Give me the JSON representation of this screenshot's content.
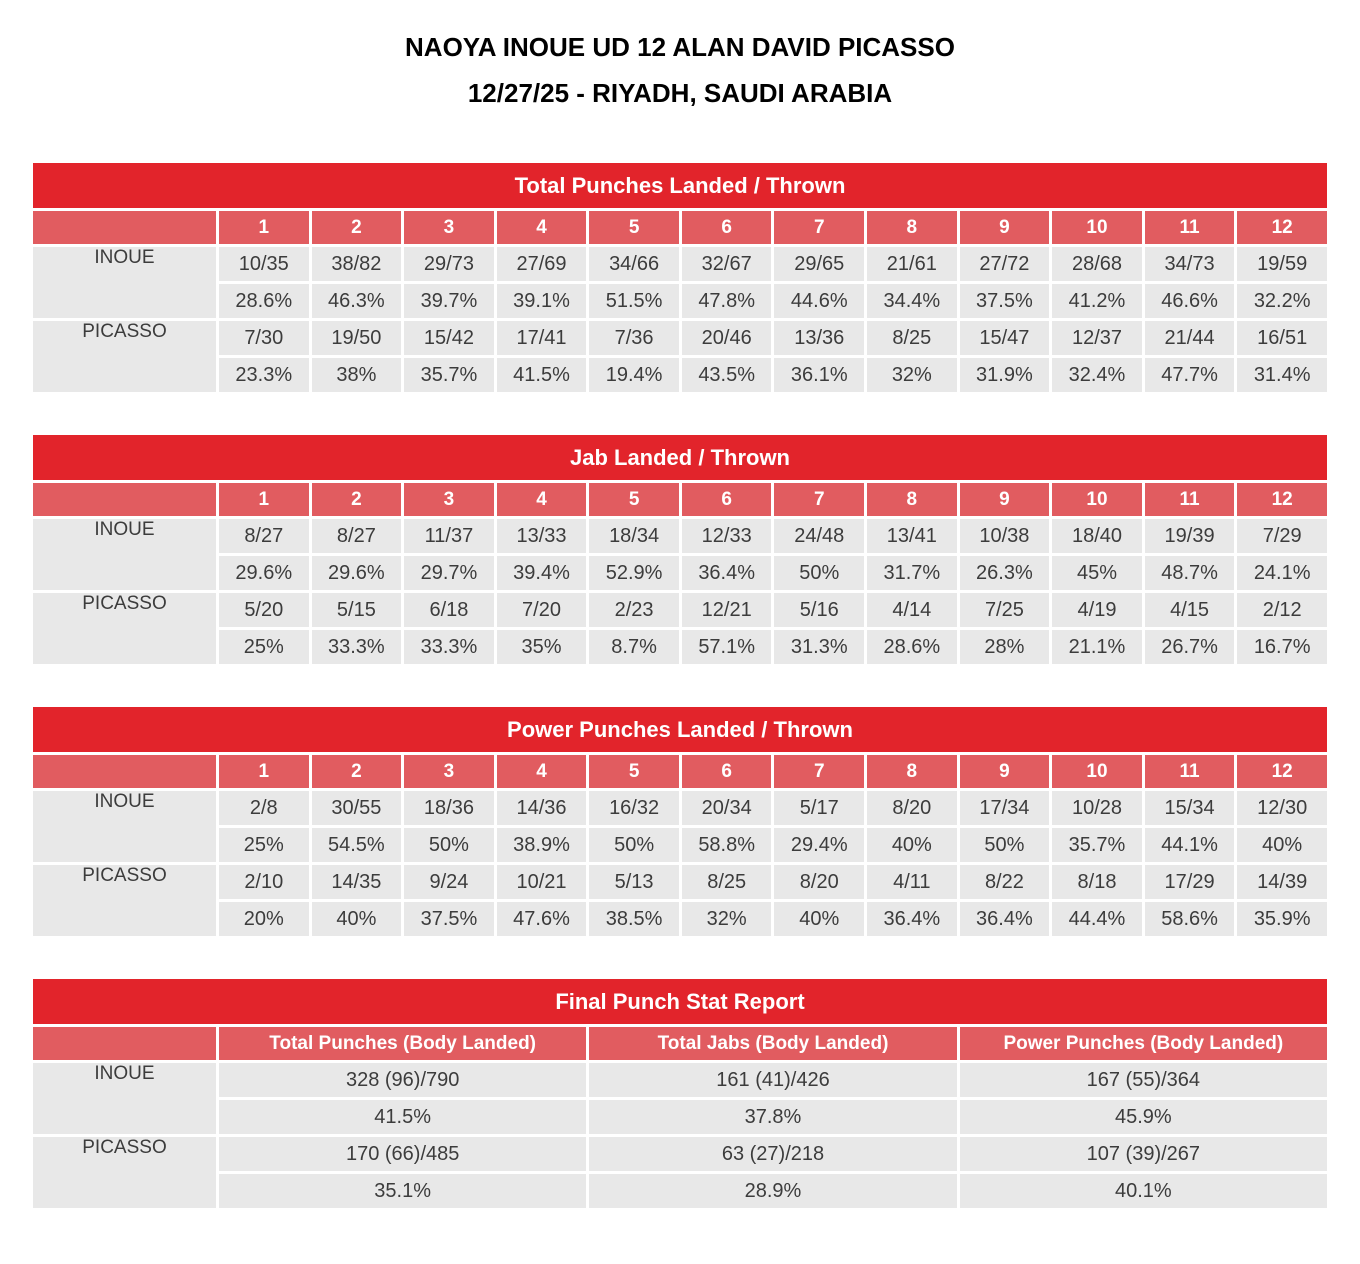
{
  "page": {
    "title_line1": "NAOYA INOUE UD 12 ALAN DAVID PICASSO",
    "title_line2": "12/27/25 - RIYADH, SAUDI ARABIA"
  },
  "colors": {
    "header_red": "#E2242B",
    "subheader_red": "#E15C60",
    "cell_gray": "#E8E8E8",
    "text_dark": "#3C3C3C"
  },
  "rounds": [
    "1",
    "2",
    "3",
    "4",
    "5",
    "6",
    "7",
    "8",
    "9",
    "10",
    "11",
    "12"
  ],
  "tables": [
    {
      "id": "total-punches",
      "title": "Total Punches Landed / Thrown",
      "fighters": [
        {
          "name": "INOUE",
          "landed": [
            "10/35",
            "38/82",
            "29/73",
            "27/69",
            "34/66",
            "32/67",
            "29/65",
            "21/61",
            "27/72",
            "28/68",
            "34/73",
            "19/59"
          ],
          "pct": [
            "28.6%",
            "46.3%",
            "39.7%",
            "39.1%",
            "51.5%",
            "47.8%",
            "44.6%",
            "34.4%",
            "37.5%",
            "41.2%",
            "46.6%",
            "32.2%"
          ]
        },
        {
          "name": "PICASSO",
          "landed": [
            "7/30",
            "19/50",
            "15/42",
            "17/41",
            "7/36",
            "20/46",
            "13/36",
            "8/25",
            "15/47",
            "12/37",
            "21/44",
            "16/51"
          ],
          "pct": [
            "23.3%",
            "38%",
            "35.7%",
            "41.5%",
            "19.4%",
            "43.5%",
            "36.1%",
            "32%",
            "31.9%",
            "32.4%",
            "47.7%",
            "31.4%"
          ]
        }
      ]
    },
    {
      "id": "jabs",
      "title": "Jab Landed / Thrown",
      "fighters": [
        {
          "name": "INOUE",
          "landed": [
            "8/27",
            "8/27",
            "11/37",
            "13/33",
            "18/34",
            "12/33",
            "24/48",
            "13/41",
            "10/38",
            "18/40",
            "19/39",
            "7/29"
          ],
          "pct": [
            "29.6%",
            "29.6%",
            "29.7%",
            "39.4%",
            "52.9%",
            "36.4%",
            "50%",
            "31.7%",
            "26.3%",
            "45%",
            "48.7%",
            "24.1%"
          ]
        },
        {
          "name": "PICASSO",
          "landed": [
            "5/20",
            "5/15",
            "6/18",
            "7/20",
            "2/23",
            "12/21",
            "5/16",
            "4/14",
            "7/25",
            "4/19",
            "4/15",
            "2/12"
          ],
          "pct": [
            "25%",
            "33.3%",
            "33.3%",
            "35%",
            "8.7%",
            "57.1%",
            "31.3%",
            "28.6%",
            "28%",
            "21.1%",
            "26.7%",
            "16.7%"
          ]
        }
      ]
    },
    {
      "id": "power-punches",
      "title": "Power Punches Landed / Thrown",
      "fighters": [
        {
          "name": "INOUE",
          "landed": [
            "2/8",
            "30/55",
            "18/36",
            "14/36",
            "16/32",
            "20/34",
            "5/17",
            "8/20",
            "17/34",
            "10/28",
            "15/34",
            "12/30"
          ],
          "pct": [
            "25%",
            "54.5%",
            "50%",
            "38.9%",
            "50%",
            "58.8%",
            "29.4%",
            "40%",
            "50%",
            "35.7%",
            "44.1%",
            "40%"
          ]
        },
        {
          "name": "PICASSO",
          "landed": [
            "2/10",
            "14/35",
            "9/24",
            "10/21",
            "5/13",
            "8/25",
            "8/20",
            "4/11",
            "8/22",
            "8/18",
            "17/29",
            "14/39"
          ],
          "pct": [
            "20%",
            "40%",
            "37.5%",
            "47.6%",
            "38.5%",
            "32%",
            "40%",
            "36.4%",
            "36.4%",
            "44.4%",
            "58.6%",
            "35.9%"
          ]
        }
      ]
    }
  ],
  "final_report": {
    "id": "final-report",
    "title": "Final Punch Stat Report",
    "columns": [
      "Total Punches (Body Landed)",
      "Total Jabs (Body Landed)",
      "Power Punches (Body Landed)"
    ],
    "fighters": [
      {
        "name": "INOUE",
        "values": [
          "328 (96)/790",
          "161 (41)/426",
          "167 (55)/364"
        ],
        "pct": [
          "41.5%",
          "37.8%",
          "45.9%"
        ]
      },
      {
        "name": "PICASSO",
        "values": [
          "170 (66)/485",
          "63 (27)/218",
          "107 (39)/267"
        ],
        "pct": [
          "35.1%",
          "28.9%",
          "40.1%"
        ]
      }
    ]
  }
}
